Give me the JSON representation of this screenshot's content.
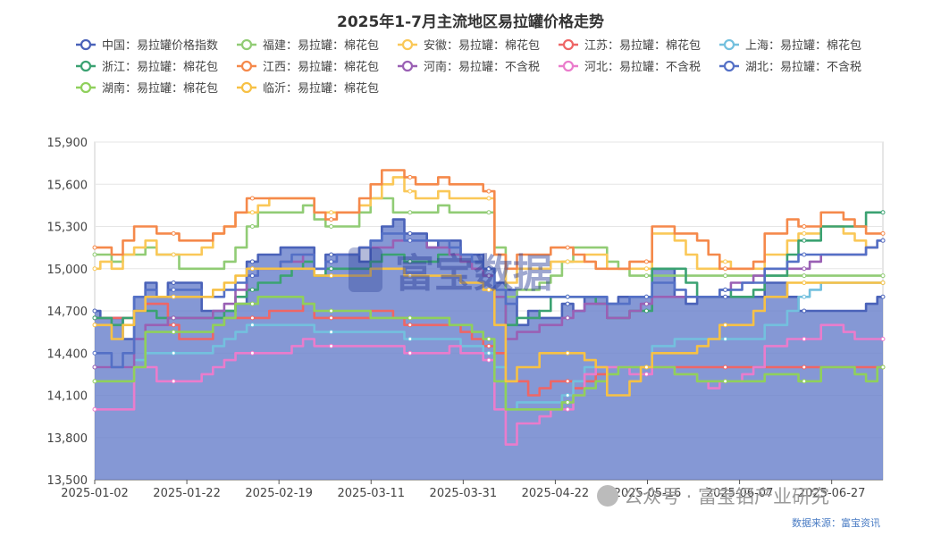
{
  "title": "2025年1-7月主流地区易拉罐价格走势",
  "source": "数据来源：富宝资讯",
  "watermark_text": "公众号 · 富宝铝产业研究",
  "logo_text": "富宝数据",
  "chart_data": {
    "type": "line",
    "title": "2025年1-7月主流地区易拉罐价格走势",
    "xlabel": "",
    "ylabel": "",
    "ylim": [
      13500,
      15900
    ],
    "yticks": [
      13500,
      13800,
      14100,
      14400,
      14700,
      15000,
      15300,
      15600,
      15900
    ],
    "ytick_labels": [
      "13,500",
      "13,800",
      "14,100",
      "14,400",
      "14,700",
      "15,000",
      "15,300",
      "15,600",
      "15,900"
    ],
    "x_tick_labels": [
      "2025-01-02",
      "2025-01-22",
      "2025-02-19",
      "2025-03-11",
      "2025-03-31",
      "2025-04-22",
      "2025-05-16",
      "2025-06-07",
      "2025-06-27"
    ],
    "grid": "horizontal",
    "legend_position": "top",
    "series": [
      {
        "name": "中国：易拉罐价格指数",
        "color": "#4a62b9",
        "area": true,
        "values": [
          14700,
          14650,
          14650,
          14500,
          14800,
          14900,
          14800,
          14900,
          14900,
          14900,
          14700,
          14700,
          14700,
          14750,
          15050,
          15100,
          15100,
          15150,
          15150,
          15150,
          14950,
          15100,
          15100,
          15100,
          15050,
          15200,
          15300,
          15350,
          15250,
          15250,
          15150,
          15200,
          15200,
          15100,
          15100,
          15000,
          14900,
          14850,
          14600,
          14700,
          14650,
          14650,
          14750,
          14700,
          14800,
          14800,
          14750,
          14800,
          14800,
          14800,
          15000,
          15000,
          14800,
          14750,
          14800,
          14800,
          14800,
          14800,
          14800,
          14800,
          14900,
          14900,
          14800,
          14700,
          14700,
          14700,
          14700,
          14700,
          14700,
          14750,
          14800
        ]
      },
      {
        "name": "福建：易拉罐：棉花包",
        "color": "#91cc75",
        "area": false,
        "values": [
          15100,
          15100,
          15050,
          15100,
          15100,
          15150,
          15100,
          15100,
          15000,
          15000,
          15000,
          15000,
          15050,
          15150,
          15300,
          15400,
          15400,
          15400,
          15400,
          15450,
          15350,
          15300,
          15300,
          15300,
          15400,
          15500,
          15500,
          15400,
          15400,
          15400,
          15400,
          15450,
          15400,
          15400,
          15400,
          15400,
          15150,
          14800,
          14850,
          14850,
          14900,
          14950,
          15050,
          15150,
          15150,
          15150,
          15050,
          15000,
          14950,
          14950,
          14950,
          14950,
          14950,
          14950,
          14950,
          14950,
          14950,
          14950,
          14950,
          14950,
          14950,
          14950,
          14950,
          14950,
          14950,
          14950,
          14950,
          14950,
          14950,
          14950,
          14950
        ]
      },
      {
        "name": "安徽：易拉罐：棉花包",
        "color": "#fac858",
        "area": false,
        "values": [
          15000,
          15050,
          15000,
          15100,
          15150,
          15200,
          15100,
          15100,
          15100,
          15100,
          15150,
          15250,
          15300,
          15400,
          15400,
          15450,
          15500,
          15500,
          15500,
          15500,
          15400,
          15400,
          15400,
          15400,
          15450,
          15500,
          15600,
          15650,
          15550,
          15500,
          15500,
          15550,
          15500,
          15500,
          15500,
          15500,
          15100,
          14900,
          15000,
          15000,
          15000,
          15050,
          15050,
          15050,
          15100,
          15100,
          15000,
          15000,
          15000,
          15000,
          15250,
          15250,
          15200,
          15100,
          15000,
          15000,
          15050,
          15000,
          15000,
          15000,
          15100,
          15100,
          15200,
          15250,
          15250,
          15300,
          15300,
          15250,
          15200,
          15150,
          15200
        ]
      },
      {
        "name": "江苏：易拉罐：棉花包",
        "color": "#ee6666",
        "area": false,
        "values": [
          14650,
          14650,
          14650,
          14650,
          14700,
          14750,
          14750,
          14600,
          14500,
          14500,
          14500,
          14600,
          14650,
          14650,
          14650,
          14650,
          14700,
          14700,
          14700,
          14750,
          14650,
          14650,
          14650,
          14650,
          14650,
          14700,
          14700,
          14650,
          14600,
          14600,
          14600,
          14600,
          14600,
          14550,
          14500,
          14450,
          14400,
          14200,
          14200,
          14100,
          14150,
          14200,
          14200,
          14150,
          14200,
          14250,
          14300,
          14300,
          14300,
          14300,
          14300,
          14300,
          14300,
          14300,
          14300,
          14300,
          14300,
          14300,
          14300,
          14300,
          14300,
          14300,
          14300,
          14300,
          14300,
          14300,
          14300,
          14300,
          14300,
          14300,
          14300
        ]
      },
      {
        "name": "上海：易拉罐：棉花包",
        "color": "#73c0de",
        "area": false,
        "values": [
          14300,
          14300,
          14300,
          14300,
          14350,
          14400,
          14400,
          14400,
          14400,
          14400,
          14400,
          14450,
          14500,
          14550,
          14600,
          14600,
          14600,
          14600,
          14600,
          14600,
          14550,
          14550,
          14550,
          14550,
          14550,
          14550,
          14550,
          14550,
          14500,
          14500,
          14500,
          14500,
          14500,
          14450,
          14450,
          14400,
          14300,
          14000,
          14050,
          14050,
          14050,
          14050,
          14100,
          14200,
          14300,
          14300,
          14300,
          14300,
          14300,
          14300,
          14450,
          14450,
          14500,
          14500,
          14500,
          14500,
          14500,
          14500,
          14500,
          14500,
          14600,
          14600,
          14700,
          14800,
          14850,
          14900,
          14900,
          14900,
          14900,
          14900,
          14900
        ]
      },
      {
        "name": "浙江：易拉罐：棉花包",
        "color": "#3ba272",
        "area": false,
        "values": [
          14650,
          14650,
          14600,
          14650,
          14700,
          14700,
          14650,
          14650,
          14650,
          14650,
          14650,
          14650,
          14700,
          14800,
          14850,
          14900,
          14900,
          14950,
          15000,
          15050,
          14950,
          15000,
          15000,
          15000,
          15000,
          15050,
          15100,
          15100,
          15050,
          15050,
          15050,
          15100,
          15100,
          15050,
          15050,
          15000,
          14800,
          14600,
          14650,
          14650,
          14700,
          14800,
          14800,
          14800,
          14800,
          14750,
          14650,
          14650,
          14700,
          14700,
          15000,
          15000,
          15000,
          14900,
          14800,
          14800,
          14850,
          14800,
          14800,
          14850,
          14950,
          14950,
          15100,
          15200,
          15200,
          15300,
          15300,
          15300,
          15300,
          15400,
          15400
        ]
      },
      {
        "name": "江西：易拉罐：棉花包",
        "color": "#f5894b",
        "area": false,
        "values": [
          15150,
          15150,
          15100,
          15200,
          15300,
          15300,
          15250,
          15250,
          15200,
          15200,
          15200,
          15250,
          15300,
          15400,
          15500,
          15500,
          15500,
          15500,
          15500,
          15500,
          15400,
          15350,
          15400,
          15400,
          15500,
          15600,
          15700,
          15700,
          15650,
          15600,
          15600,
          15650,
          15600,
          15600,
          15600,
          15550,
          15100,
          15000,
          15100,
          15100,
          15100,
          15150,
          15150,
          15100,
          15050,
          15000,
          15000,
          15000,
          15050,
          15050,
          15300,
          15300,
          15250,
          15250,
          15200,
          15100,
          15000,
          15000,
          15000,
          15050,
          15250,
          15250,
          15350,
          15300,
          15300,
          15400,
          15400,
          15350,
          15300,
          15250,
          15250
        ]
      },
      {
        "name": "河南：易拉罐：不含税",
        "color": "#9a60b4",
        "area": false,
        "values": [
          14300,
          14300,
          14300,
          14300,
          14500,
          14600,
          14600,
          14650,
          14650,
          14650,
          14650,
          14700,
          14750,
          14850,
          14950,
          15000,
          15000,
          15050,
          15050,
          15100,
          15000,
          15050,
          15100,
          15100,
          15150,
          15150,
          15150,
          15200,
          15200,
          15200,
          15150,
          15150,
          15100,
          15050,
          15000,
          14950,
          14800,
          14500,
          14550,
          14550,
          14600,
          14600,
          14650,
          14700,
          14750,
          14750,
          14650,
          14650,
          14700,
          14750,
          14800,
          14800,
          14800,
          14800,
          14800,
          14800,
          14850,
          14900,
          14900,
          14950,
          15000,
          15000,
          15000,
          15000,
          15050,
          15100,
          15100,
          15100,
          15100,
          15150,
          15200
        ]
      },
      {
        "name": "河北：易拉罐：不含税",
        "color": "#ea7ccc",
        "area": false,
        "values": [
          14000,
          14000,
          14000,
          14000,
          14300,
          14300,
          14200,
          14200,
          14200,
          14200,
          14250,
          14300,
          14350,
          14400,
          14400,
          14400,
          14400,
          14400,
          14450,
          14500,
          14450,
          14450,
          14450,
          14450,
          14450,
          14450,
          14450,
          14450,
          14400,
          14400,
          14400,
          14400,
          14450,
          14400,
          14400,
          14350,
          14000,
          13750,
          13900,
          13900,
          13950,
          14000,
          14000,
          14100,
          14250,
          14300,
          14300,
          14300,
          14250,
          14250,
          14300,
          14300,
          14250,
          14250,
          14200,
          14150,
          14200,
          14200,
          14250,
          14300,
          14450,
          14450,
          14500,
          14500,
          14500,
          14600,
          14600,
          14550,
          14500,
          14500,
          14500
        ]
      },
      {
        "name": "湖北：易拉罐：不含税",
        "color": "#5470c6",
        "area": false,
        "values": [
          14400,
          14400,
          14300,
          14400,
          14800,
          14850,
          14800,
          14850,
          14850,
          14850,
          14800,
          14800,
          14850,
          14900,
          14950,
          15000,
          15000,
          15050,
          15100,
          15100,
          15000,
          15050,
          15100,
          15100,
          15150,
          15200,
          15250,
          15250,
          15200,
          15200,
          15200,
          15200,
          15150,
          15100,
          15050,
          15000,
          14850,
          14750,
          14800,
          14800,
          14800,
          14800,
          14800,
          14800,
          14800,
          14800,
          14750,
          14750,
          14800,
          14800,
          14900,
          14900,
          14850,
          14800,
          14800,
          14800,
          14850,
          14850,
          14900,
          14900,
          15000,
          15000,
          15050,
          15100,
          15100,
          15100,
          15100,
          15100,
          15100,
          15150,
          15200
        ]
      },
      {
        "name": "湖南：易拉罐：棉花包",
        "color": "#8fd05c",
        "area": false,
        "values": [
          14200,
          14200,
          14200,
          14200,
          14300,
          14550,
          14550,
          14550,
          14550,
          14550,
          14550,
          14600,
          14650,
          14750,
          14750,
          14800,
          14800,
          14800,
          14800,
          14750,
          14700,
          14700,
          14700,
          14700,
          14700,
          14650,
          14650,
          14650,
          14650,
          14650,
          14650,
          14650,
          14600,
          14600,
          14550,
          14500,
          14200,
          14000,
          14000,
          14000,
          14000,
          14000,
          14050,
          14100,
          14150,
          14200,
          14250,
          14300,
          14300,
          14300,
          14300,
          14300,
          14250,
          14250,
          14200,
          14200,
          14200,
          14200,
          14200,
          14200,
          14250,
          14250,
          14250,
          14200,
          14200,
          14300,
          14300,
          14300,
          14250,
          14200,
          14300
        ]
      },
      {
        "name": "临沂：易拉罐：棉花包",
        "color": "#f7c145",
        "area": false,
        "values": [
          14600,
          14600,
          14500,
          14600,
          14700,
          14800,
          14800,
          14800,
          14800,
          14800,
          14800,
          14850,
          14900,
          14950,
          15000,
          15000,
          15000,
          15000,
          15000,
          15000,
          14950,
          14950,
          14950,
          14950,
          14950,
          15000,
          15000,
          15000,
          14950,
          14950,
          14950,
          14950,
          14950,
          14900,
          14900,
          14850,
          14600,
          14200,
          14300,
          14300,
          14400,
          14400,
          14400,
          14400,
          14350,
          14300,
          14100,
          14100,
          14200,
          14300,
          14400,
          14400,
          14400,
          14400,
          14450,
          14500,
          14600,
          14600,
          14600,
          14700,
          14800,
          14800,
          14900,
          14900,
          14900,
          14900,
          14900,
          14900,
          14900,
          14900,
          14900
        ]
      }
    ]
  }
}
